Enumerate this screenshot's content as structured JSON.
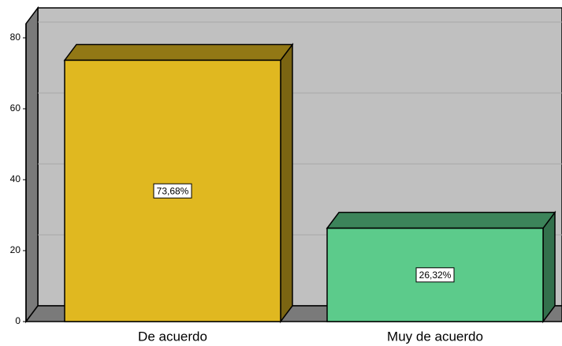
{
  "chart_data": {
    "type": "bar3d",
    "categories": [
      "De acuerdo",
      "Muy de acuerdo"
    ],
    "values": [
      73.68,
      26.32
    ],
    "value_labels": [
      "73,68%",
      "26,32%"
    ],
    "colors": [
      "#e0b820",
      "#5ccb8b"
    ],
    "ylim": [
      0,
      84
    ],
    "yticks": [
      0,
      20,
      40,
      60,
      80
    ],
    "grid": true
  }
}
